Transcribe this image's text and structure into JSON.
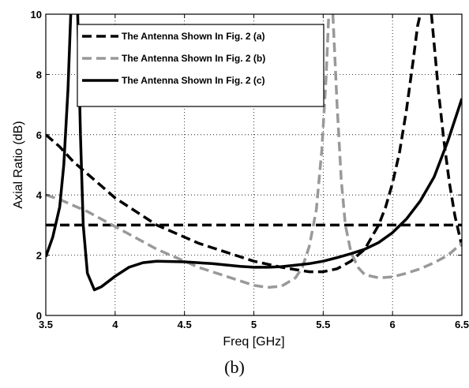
{
  "caption": "(b)",
  "chart_data": {
    "type": "line",
    "xlabel": "Freq [GHz]",
    "ylabel": "Axial Ratio (dB)",
    "xlim": [
      3.5,
      6.5
    ],
    "ylim": [
      0,
      10
    ],
    "xticks": [
      "3.5",
      "4",
      "4.5",
      "5",
      "5.5",
      "6",
      "6.5"
    ],
    "yticks": [
      "0",
      "2",
      "4",
      "6",
      "8",
      "10"
    ],
    "xtick_values": [
      3.5,
      4,
      4.5,
      5,
      5.5,
      6,
      6.5
    ],
    "ytick_values": [
      0,
      2,
      4,
      6,
      8,
      10
    ],
    "grid": true,
    "legend_position": "top-left",
    "reference_line": {
      "y": 3,
      "color": "#000000",
      "style": "dashed"
    },
    "series": [
      {
        "name": "The Antenna Shown In Fig. 2 (a)",
        "color": "#000000",
        "style": "dashed",
        "points": [
          [
            3.5,
            6.0
          ],
          [
            3.6,
            5.6
          ],
          [
            3.7,
            5.1
          ],
          [
            3.8,
            4.7
          ],
          [
            3.9,
            4.3
          ],
          [
            4.0,
            3.9
          ],
          [
            4.1,
            3.6
          ],
          [
            4.2,
            3.3
          ],
          [
            4.3,
            3.0
          ],
          [
            4.4,
            2.8
          ],
          [
            4.5,
            2.6
          ],
          [
            4.6,
            2.4
          ],
          [
            4.7,
            2.25
          ],
          [
            4.8,
            2.1
          ],
          [
            4.9,
            1.95
          ],
          [
            5.0,
            1.8
          ],
          [
            5.1,
            1.7
          ],
          [
            5.2,
            1.6
          ],
          [
            5.3,
            1.52
          ],
          [
            5.4,
            1.45
          ],
          [
            5.5,
            1.45
          ],
          [
            5.6,
            1.55
          ],
          [
            5.7,
            1.8
          ],
          [
            5.8,
            2.2
          ],
          [
            5.9,
            3.0
          ],
          [
            5.95,
            3.6
          ],
          [
            6.0,
            4.4
          ],
          [
            6.05,
            5.4
          ],
          [
            6.1,
            6.8
          ],
          [
            6.15,
            8.5
          ],
          [
            6.18,
            9.6
          ],
          [
            6.2,
            10.0
          ]
        ]
      },
      {
        "name": "",
        "color": "#000000",
        "style": "dashed",
        "points": [
          [
            6.28,
            10.0
          ],
          [
            6.3,
            9.0
          ],
          [
            6.33,
            7.5
          ],
          [
            6.37,
            5.8
          ],
          [
            6.41,
            4.4
          ],
          [
            6.45,
            3.3
          ],
          [
            6.48,
            2.7
          ],
          [
            6.5,
            2.3
          ]
        ]
      },
      {
        "name": "The Antenna Shown In Fig. 2 (b)",
        "color": "#999999",
        "style": "dashed",
        "points": [
          [
            3.5,
            4.0
          ],
          [
            3.6,
            3.85
          ],
          [
            3.7,
            3.65
          ],
          [
            3.8,
            3.45
          ],
          [
            3.9,
            3.2
          ],
          [
            4.0,
            2.95
          ],
          [
            4.1,
            2.7
          ],
          [
            4.2,
            2.45
          ],
          [
            4.3,
            2.2
          ],
          [
            4.4,
            2.0
          ],
          [
            4.5,
            1.8
          ],
          [
            4.6,
            1.6
          ],
          [
            4.7,
            1.45
          ],
          [
            4.8,
            1.3
          ],
          [
            4.9,
            1.15
          ],
          [
            5.0,
            1.0
          ],
          [
            5.1,
            0.93
          ],
          [
            5.2,
            0.97
          ],
          [
            5.3,
            1.25
          ],
          [
            5.35,
            1.6
          ],
          [
            5.4,
            2.3
          ],
          [
            5.45,
            3.5
          ],
          [
            5.49,
            5.5
          ],
          [
            5.52,
            7.8
          ],
          [
            5.54,
            10.0
          ]
        ]
      },
      {
        "name": "",
        "color": "#999999",
        "style": "dashed",
        "points": [
          [
            5.57,
            10.0
          ],
          [
            5.6,
            7.0
          ],
          [
            5.63,
            4.5
          ],
          [
            5.66,
            3.0
          ],
          [
            5.7,
            2.1
          ],
          [
            5.75,
            1.6
          ],
          [
            5.8,
            1.35
          ],
          [
            5.9,
            1.25
          ],
          [
            6.0,
            1.28
          ],
          [
            6.1,
            1.4
          ],
          [
            6.2,
            1.55
          ],
          [
            6.3,
            1.75
          ],
          [
            6.4,
            2.0
          ],
          [
            6.5,
            2.4
          ]
        ]
      },
      {
        "name": "The Antenna Shown In Fig. 2 (c)",
        "color": "#000000",
        "style": "solid",
        "points": [
          [
            3.5,
            1.95
          ],
          [
            3.55,
            2.6
          ],
          [
            3.6,
            3.6
          ],
          [
            3.63,
            5.0
          ],
          [
            3.66,
            7.5
          ],
          [
            3.68,
            10.0
          ]
        ]
      },
      {
        "name": "",
        "color": "#000000",
        "style": "solid",
        "points": [
          [
            3.73,
            10.0
          ],
          [
            3.75,
            6.0
          ],
          [
            3.77,
            3.0
          ],
          [
            3.8,
            1.4
          ],
          [
            3.85,
            0.85
          ],
          [
            3.9,
            0.95
          ],
          [
            4.0,
            1.3
          ],
          [
            4.1,
            1.6
          ],
          [
            4.2,
            1.75
          ],
          [
            4.3,
            1.8
          ],
          [
            4.5,
            1.78
          ],
          [
            4.7,
            1.72
          ],
          [
            4.9,
            1.63
          ],
          [
            5.0,
            1.6
          ],
          [
            5.1,
            1.6
          ],
          [
            5.2,
            1.62
          ],
          [
            5.3,
            1.67
          ],
          [
            5.4,
            1.72
          ],
          [
            5.5,
            1.8
          ],
          [
            5.6,
            1.92
          ],
          [
            5.7,
            2.05
          ],
          [
            5.8,
            2.2
          ],
          [
            5.9,
            2.42
          ],
          [
            6.0,
            2.75
          ],
          [
            6.1,
            3.2
          ],
          [
            6.2,
            3.8
          ],
          [
            6.3,
            4.6
          ],
          [
            6.4,
            5.8
          ],
          [
            6.5,
            7.2
          ]
        ]
      }
    ]
  }
}
